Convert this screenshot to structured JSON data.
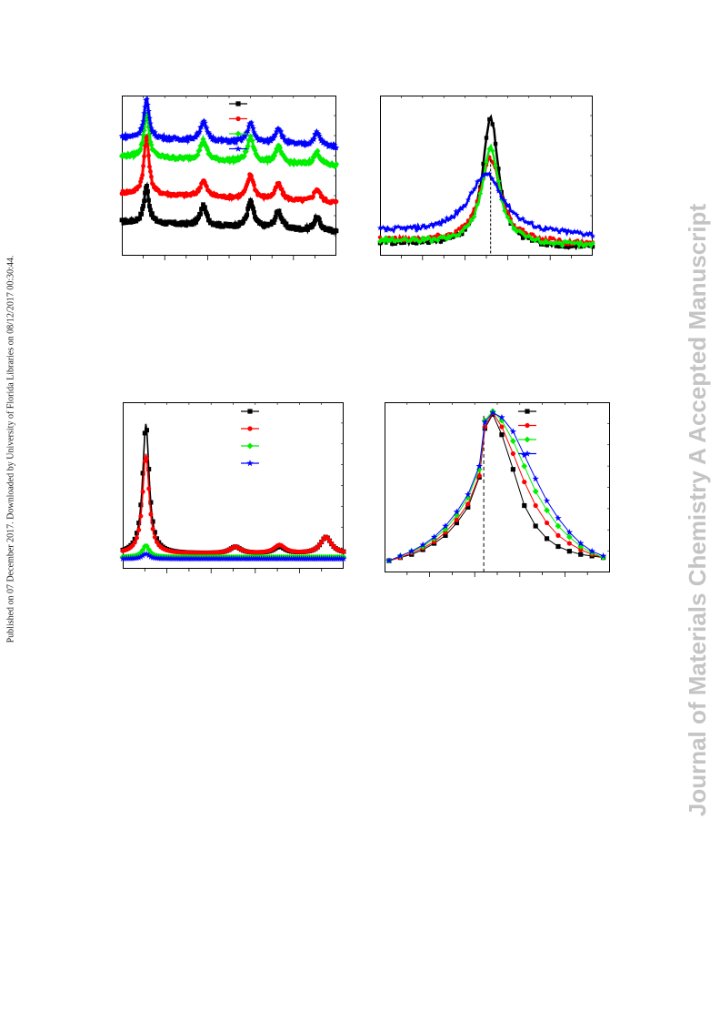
{
  "side_note": "Published on 07 December 2017. Downloaded by University of Florida Libraries on 08/12/2017 00:30:44.",
  "watermark": "Journal of Materials Chemistry A Accepted Manuscript",
  "series_colors": [
    "#000000",
    "#ff0000",
    "#00ee00",
    "#0000ff"
  ],
  "series_markers": [
    "square",
    "circle",
    "diamond",
    "star"
  ],
  "chart_data": [
    {
      "type": "line",
      "panel": "top-left",
      "title": "",
      "xlabel": "",
      "ylabel": "",
      "legend_placement": "top-right",
      "xlim": [
        0,
        100
      ],
      "ylim": [
        0,
        100
      ],
      "series": [
        {
          "color": "#000000",
          "marker": "square",
          "baseline": 15,
          "peaks": [
            [
              11.5,
              23
            ],
            [
              38,
              12
            ],
            [
              60,
              16
            ],
            [
              73,
              11
            ],
            [
              91,
              8
            ]
          ]
        },
        {
          "color": "#ff0000",
          "marker": "circle",
          "baseline": 33,
          "peaks": [
            [
              11.5,
              37
            ],
            [
              38,
              10
            ],
            [
              60,
              15
            ],
            [
              73,
              10
            ],
            [
              91,
              8
            ]
          ]
        },
        {
          "color": "#00ee00",
          "marker": "diamond",
          "baseline": 56,
          "peaks": [
            [
              11.5,
              28
            ],
            [
              38,
              12
            ],
            [
              60,
              15
            ],
            [
              73,
              10
            ],
            [
              91,
              8
            ]
          ]
        },
        {
          "color": "#0000ff",
          "marker": "star",
          "baseline": 68,
          "peaks": [
            [
              11.5,
              24
            ],
            [
              38,
              12
            ],
            [
              60,
              12
            ],
            [
              73,
              10
            ],
            [
              91,
              8
            ]
          ]
        }
      ]
    },
    {
      "type": "line",
      "panel": "top-right",
      "title": "",
      "xlabel": "",
      "ylabel": "",
      "xlim": [
        0,
        100
      ],
      "ylim": [
        0,
        100
      ],
      "reference_x": 52,
      "series": [
        {
          "color": "#000000",
          "marker": "square",
          "baseline": 8,
          "peak_x": 52,
          "peak_height": 80,
          "width": 4.5
        },
        {
          "color": "#ff0000",
          "marker": "circle",
          "baseline": 10,
          "peak_x": 52,
          "peak_height": 52,
          "width": 6
        },
        {
          "color": "#00ee00",
          "marker": "diamond",
          "baseline": 9,
          "peak_x": 52,
          "peak_height": 60,
          "width": 5
        },
        {
          "color": "#0000ff",
          "marker": "star",
          "baseline": 15,
          "peak_x": 50,
          "peak_height": 37,
          "width": 10
        }
      ]
    },
    {
      "type": "line",
      "panel": "bottom-left",
      "title": "",
      "xlabel": "",
      "ylabel": "",
      "legend_placement": "top-right",
      "xlim": [
        0,
        100
      ],
      "ylim": [
        0,
        100
      ],
      "series": [
        {
          "color": "#000000",
          "marker": "square",
          "baseline": 9,
          "peaks": [
            [
              10.5,
              78
            ],
            [
              51,
              4
            ],
            [
              71,
              4
            ],
            [
              92,
              10
            ]
          ]
        },
        {
          "color": "#ff0000",
          "marker": "circle",
          "baseline": 9,
          "peaks": [
            [
              10.5,
              60
            ],
            [
              51,
              4
            ],
            [
              71,
              5
            ],
            [
              92,
              10
            ]
          ]
        },
        {
          "color": "#00ee00",
          "marker": "diamond",
          "baseline": 7,
          "peaks": [
            [
              10.5,
              7
            ]
          ]
        },
        {
          "color": "#0000ff",
          "marker": "star",
          "baseline": 6,
          "peaks": [
            [
              10.5,
              3
            ]
          ]
        }
      ]
    },
    {
      "type": "line",
      "panel": "bottom-right",
      "title": "",
      "xlabel": "",
      "ylabel": "",
      "legend_placement": "top-right",
      "xlim": [
        0,
        100
      ],
      "ylim": [
        0,
        100
      ],
      "reference_x": 44,
      "x_points": [
        2,
        7,
        12,
        17,
        22,
        27,
        32,
        37,
        42,
        44.5,
        48,
        52,
        57,
        62,
        67,
        72,
        77,
        82,
        87,
        92,
        97
      ],
      "series": [
        {
          "color": "#000000",
          "marker": "square",
          "values": [
            4,
            6,
            8,
            11,
            15,
            20,
            28,
            38,
            57,
            88,
            97,
            84,
            62,
            39,
            26,
            18,
            13,
            10,
            8,
            7,
            6
          ]
        },
        {
          "color": "#ff0000",
          "marker": "circle",
          "values": [
            4,
            6,
            9,
            12,
            16,
            22,
            30,
            40,
            58,
            89,
            98,
            89,
            72,
            54,
            39,
            28,
            20,
            15,
            11,
            8,
            6
          ]
        },
        {
          "color": "#00ee00",
          "marker": "diamond",
          "values": [
            4,
            7,
            10,
            13,
            18,
            24,
            33,
            44,
            62,
            93,
            99,
            93,
            80,
            64,
            48,
            36,
            26,
            19,
            13,
            9,
            6
          ]
        },
        {
          "color": "#0000ff",
          "marker": "star",
          "values": [
            4,
            7,
            10,
            14,
            19,
            26,
            35,
            46,
            64,
            92,
            98,
            95,
            86,
            71,
            56,
            42,
            31,
            22,
            15,
            10,
            7
          ]
        }
      ]
    }
  ]
}
